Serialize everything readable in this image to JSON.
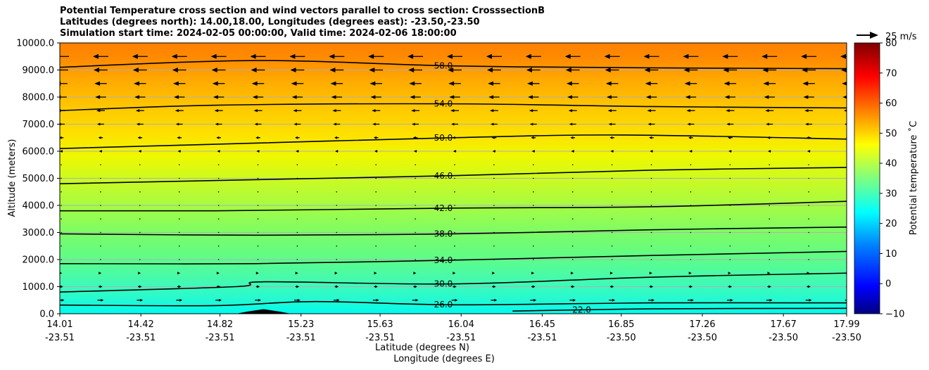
{
  "chart_data": {
    "type": "heatmap",
    "title_lines": [
      "Potential Temperature cross section and wind vectors parallel to cross section: CrosssectionB",
      "Latitudes (degrees north): 14.00,18.00, Longitudes (degrees east): -23.50,-23.50",
      "Simulation start time: 2024-02-05 00:00:00, Valid time: 2024-02-06 18:00:00"
    ],
    "ylabel": "Altitude (meters)",
    "xlabel_lat": "Latitude (degrees N)",
    "xlabel_lon": "Longitude (degrees E)",
    "ylim": [
      0,
      10000
    ],
    "y_ticks": [
      "0.0",
      "1000.0",
      "2000.0",
      "3000.0",
      "4000.0",
      "5000.0",
      "6000.0",
      "7000.0",
      "8000.0",
      "9000.0",
      "10000.0"
    ],
    "x_ticks_lat": [
      "14.01",
      "14.42",
      "14.82",
      "15.23",
      "15.63",
      "16.04",
      "16.45",
      "16.85",
      "17.26",
      "17.67",
      "17.99"
    ],
    "x_ticks_lon": [
      "-23.51",
      "-23.51",
      "-23.51",
      "-23.51",
      "-23.51",
      "-23.51",
      "-23.51",
      "-23.50",
      "-23.50",
      "-23.50",
      "-23.50"
    ],
    "x_tick_values": [
      14.01,
      14.42,
      14.82,
      15.23,
      15.63,
      16.04,
      16.45,
      16.85,
      17.26,
      17.67,
      17.99
    ],
    "colorbar": {
      "label": "Potential temperature ˚C",
      "range": [
        -10,
        80
      ],
      "ticks": [
        "80",
        "70",
        "60",
        "50",
        "40",
        "30",
        "20",
        "10",
        "0",
        "−10"
      ],
      "tick_values": [
        80,
        70,
        60,
        50,
        40,
        30,
        20,
        10,
        0,
        -10
      ],
      "colormap": "jet"
    },
    "quiver_key": "25 m/s",
    "contours": [
      {
        "label": "58.0",
        "points": [
          [
            14.01,
            9100
          ],
          [
            15.0,
            9350
          ],
          [
            16.0,
            9150
          ],
          [
            17.0,
            9080
          ],
          [
            17.99,
            9050
          ]
        ]
      },
      {
        "label": "54.0",
        "points": [
          [
            14.01,
            7500
          ],
          [
            14.8,
            7700
          ],
          [
            16.0,
            7750
          ],
          [
            17.0,
            7650
          ],
          [
            17.99,
            7600
          ]
        ]
      },
      {
        "label": "50.0",
        "points": [
          [
            14.01,
            6100
          ],
          [
            15.0,
            6300
          ],
          [
            16.0,
            6500
          ],
          [
            16.85,
            6600
          ],
          [
            17.99,
            6450
          ]
        ]
      },
      {
        "label": "46.0",
        "points": [
          [
            14.01,
            4800
          ],
          [
            15.0,
            4950
          ],
          [
            16.0,
            5100
          ],
          [
            17.0,
            5300
          ],
          [
            17.99,
            5400
          ]
        ]
      },
      {
        "label": "42.0",
        "points": [
          [
            14.01,
            3800
          ],
          [
            14.8,
            3800
          ],
          [
            16.0,
            3900
          ],
          [
            17.0,
            3950
          ],
          [
            17.99,
            4150
          ]
        ]
      },
      {
        "label": "38.0",
        "points": [
          [
            14.01,
            2950
          ],
          [
            15.0,
            2900
          ],
          [
            16.0,
            2950
          ],
          [
            17.0,
            3100
          ],
          [
            17.99,
            3200
          ]
        ]
      },
      {
        "label": "34.0",
        "points": [
          [
            14.01,
            1850
          ],
          [
            15.0,
            1850
          ],
          [
            16.0,
            1980
          ],
          [
            17.0,
            2150
          ],
          [
            17.99,
            2300
          ]
        ]
      },
      {
        "label": "30.0",
        "points": [
          [
            14.01,
            800
          ],
          [
            14.9,
            1000
          ],
          [
            15.05,
            1180
          ],
          [
            16.0,
            1100
          ],
          [
            17.0,
            1350
          ],
          [
            17.99,
            1500
          ]
        ]
      },
      {
        "label": "26.0",
        "points": [
          [
            14.01,
            320
          ],
          [
            14.8,
            300
          ],
          [
            15.3,
            450
          ],
          [
            16.0,
            330
          ],
          [
            17.0,
            400
          ],
          [
            17.99,
            400
          ]
        ]
      },
      {
        "label": "22.0",
        "points": [
          [
            16.3,
            100
          ],
          [
            17.0,
            180
          ],
          [
            17.99,
            200
          ]
        ]
      }
    ],
    "wind_vectors_parallel": [
      {
        "altitude": 9500,
        "direction": "left",
        "speed_rel": 1.0
      },
      {
        "altitude": 9000,
        "direction": "left",
        "speed_rel": 0.9
      },
      {
        "altitude": 8500,
        "direction": "left",
        "speed_rel": 0.8
      },
      {
        "altitude": 8000,
        "direction": "left",
        "speed_rel": 0.7
      },
      {
        "altitude": 7500,
        "direction": "left",
        "speed_rel": 0.55
      },
      {
        "altitude": 7000,
        "direction": "left",
        "speed_rel": 0.45
      },
      {
        "altitude": 6500,
        "direction": "left",
        "speed_rel": 0.3
      },
      {
        "altitude": 6000,
        "direction": "left",
        "speed_rel": 0.2
      },
      {
        "altitude": 5500,
        "direction": "none",
        "speed_rel": 0.05
      },
      {
        "altitude": 5000,
        "direction": "none",
        "speed_rel": 0.03
      },
      {
        "altitude": 4500,
        "direction": "none",
        "speed_rel": 0.02
      },
      {
        "altitude": 4000,
        "direction": "none",
        "speed_rel": 0.02
      },
      {
        "altitude": 3500,
        "direction": "none",
        "speed_rel": 0.02
      },
      {
        "altitude": 3000,
        "direction": "none",
        "speed_rel": 0.02
      },
      {
        "altitude": 2500,
        "direction": "none",
        "speed_rel": 0.02
      },
      {
        "altitude": 2000,
        "direction": "none",
        "speed_rel": 0.03
      },
      {
        "altitude": 1500,
        "direction": "right",
        "speed_rel": 0.12
      },
      {
        "altitude": 1000,
        "direction": "right",
        "speed_rel": 0.25
      },
      {
        "altitude": 500,
        "direction": "right",
        "speed_rel": 0.4
      }
    ],
    "terrain": [
      [
        14.9,
        0
      ],
      [
        14.96,
        80
      ],
      [
        15.04,
        170
      ],
      [
        15.12,
        80
      ],
      [
        15.18,
        0
      ]
    ],
    "grid": true
  }
}
